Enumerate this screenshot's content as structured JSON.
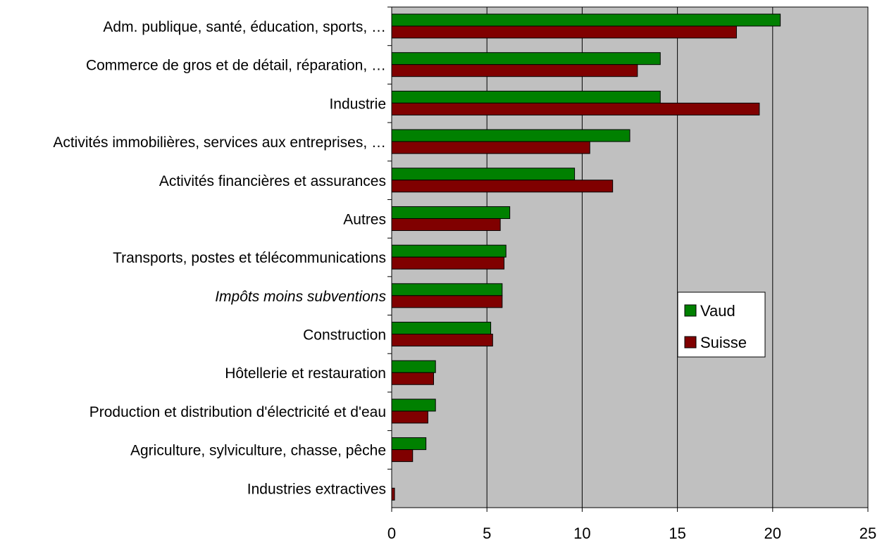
{
  "chart_data": {
    "type": "bar",
    "orientation": "horizontal",
    "categories": [
      {
        "label": "Adm. publique, santé, éducation, sports, …",
        "italic": false
      },
      {
        "label": "Commerce de gros et de détail, réparation, …",
        "italic": false
      },
      {
        "label": "Industrie",
        "italic": false
      },
      {
        "label": "Activités immobilières, services aux entreprises, …",
        "italic": false
      },
      {
        "label": "Activités financières et assurances",
        "italic": false
      },
      {
        "label": "Autres",
        "italic": false
      },
      {
        "label": "Transports, postes et télécommunications",
        "italic": false
      },
      {
        "label": "Impôts moins subventions",
        "italic": true
      },
      {
        "label": "Construction",
        "italic": false
      },
      {
        "label": "Hôtellerie et restauration",
        "italic": false
      },
      {
        "label": "Production et distribution d'électricité et d'eau",
        "italic": false
      },
      {
        "label": "Agriculture, sylviculture, chasse, pêche",
        "italic": false
      },
      {
        "label": "Industries extractives",
        "italic": false
      }
    ],
    "series": [
      {
        "name": "Vaud",
        "color": "#008000",
        "values": [
          20.4,
          14.1,
          14.1,
          12.5,
          9.6,
          6.2,
          6.0,
          5.8,
          5.2,
          2.3,
          2.3,
          1.8,
          0.0
        ]
      },
      {
        "name": "Suisse",
        "color": "#800000",
        "values": [
          18.1,
          12.9,
          19.3,
          10.4,
          11.6,
          5.7,
          5.9,
          5.8,
          5.3,
          2.2,
          1.9,
          1.1,
          0.15
        ]
      }
    ],
    "xlim": [
      0,
      25
    ],
    "xticks": [
      "0",
      "5",
      "10",
      "15",
      "20",
      "25"
    ],
    "grid": true,
    "plot_background": "#c0c0c0",
    "legend_position": "right-middle"
  }
}
